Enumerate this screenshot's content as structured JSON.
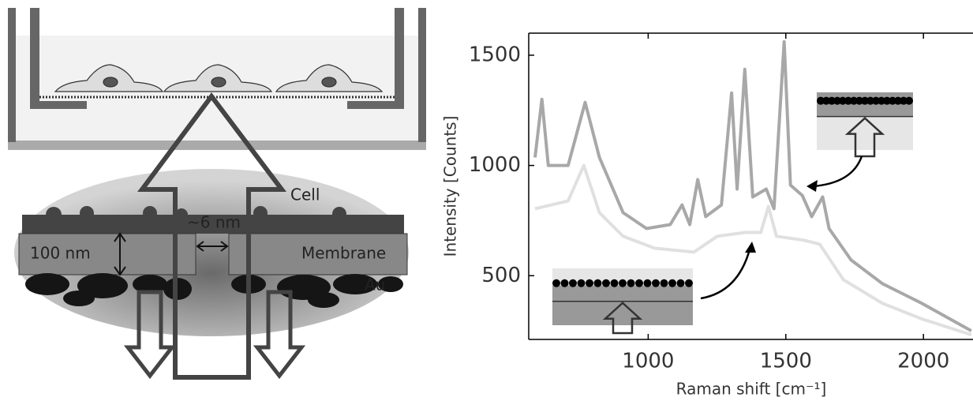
{
  "diagram": {
    "labels": {
      "cell": "Cell",
      "gap": "~6 nm",
      "thickness": "100 nm",
      "membrane": "Membrane",
      "gold": "Au"
    }
  },
  "chart_data": {
    "type": "line",
    "xlabel": "Raman shift [cm⁻¹]",
    "ylabel": "Intensity [Counts]",
    "xlim": [
      566,
      2180
    ],
    "ylim": [
      211,
      1600
    ],
    "xticks": [
      1000,
      1500,
      2000
    ],
    "yticks": [
      500,
      1000,
      1500
    ],
    "series": [
      {
        "color": "#a8a8a8",
        "x": [
          589,
          614,
          637,
          709,
          771,
          823,
          909,
          994,
          1080,
          1123,
          1151,
          1180,
          1209,
          1266,
          1303,
          1323,
          1351,
          1380,
          1429,
          1457,
          1494,
          1517,
          1560,
          1594,
          1634,
          1657,
          1737,
          1851,
          1994,
          2174
        ],
        "values": [
          1036,
          1300,
          1000,
          1000,
          1286,
          1036,
          786,
          714,
          732,
          821,
          732,
          936,
          768,
          821,
          1329,
          893,
          1436,
          857,
          893,
          804,
          1561,
          911,
          864,
          768,
          857,
          714,
          571,
          464,
          375,
          250
        ]
      },
      {
        "color": "#e0e0e0",
        "x": [
          589,
          709,
          766,
          823,
          909,
          1023,
          1166,
          1251,
          1351,
          1409,
          1437,
          1466,
          1566,
          1623,
          1709,
          1851,
          1994,
          2174
        ],
        "values": [
          804,
          839,
          1000,
          786,
          679,
          625,
          607,
          679,
          696,
          696,
          814,
          679,
          661,
          643,
          482,
          375,
          304,
          232
        ]
      }
    ]
  }
}
